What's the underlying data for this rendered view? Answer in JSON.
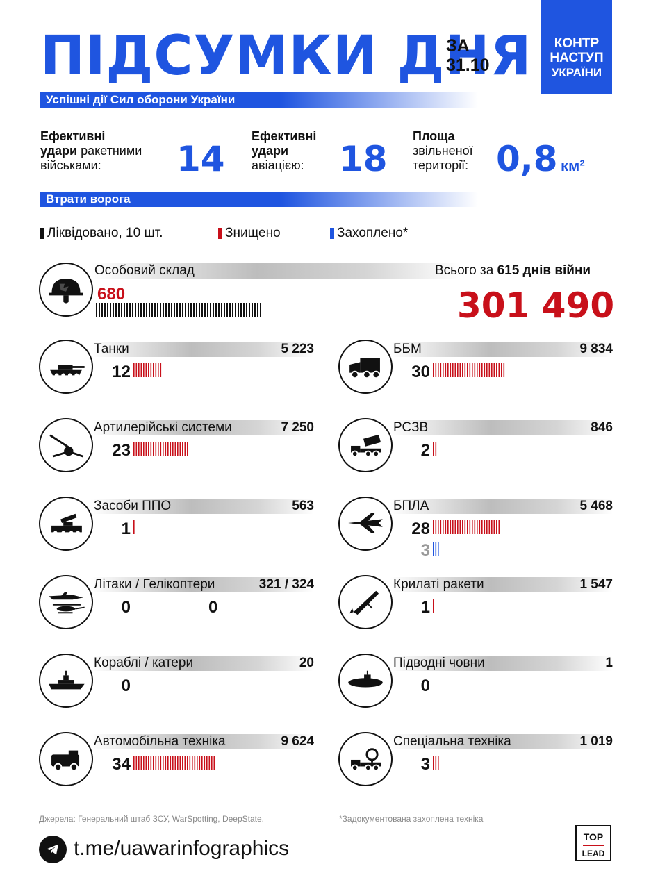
{
  "header": {
    "title": "ПІДСУМКИ ДНЯ",
    "date_prefix": "ЗА",
    "date": "31.10",
    "badge_line1": "КОНТР",
    "badge_line2": "НАСТУП",
    "badge_line3": "УКРАЇНИ"
  },
  "section1": {
    "label": "Успішні дії Сил оборони України"
  },
  "stats": [
    {
      "line1_bold": "Ефективні",
      "line2_bold": "удари",
      "line2_rest": " ракетними",
      "line3": "військами:",
      "value": "14"
    },
    {
      "line1_bold": "Ефективні",
      "line2_bold": "удари",
      "line2_rest": "",
      "line3": "авіацією:",
      "value": "18"
    },
    {
      "line1_bold": "Площа",
      "line2_bold": "",
      "line2_rest": "звільненої",
      "line3": "території:",
      "value": "0,8",
      "unit": "км²"
    }
  ],
  "section2": {
    "label": "Втрати ворога"
  },
  "legend": {
    "liquidated": "Ліквідовано, 10 шт.",
    "destroyed": "Знищено",
    "captured": "Захоплено*",
    "colors": {
      "liquidated": "#111111",
      "destroyed": "#c8101a",
      "captured": "#1f55e0"
    }
  },
  "personnel": {
    "label": "Особовий склад",
    "day": "680",
    "total_caption_pre": "Всього за ",
    "total_caption_bold": "615 днів війни",
    "total": "301 490"
  },
  "rows_left": [
    {
      "name": "Танки",
      "total": "5 223",
      "day": "12",
      "icon": "tank-icon"
    },
    {
      "name": "Артилерійські системи",
      "total": "7 250",
      "day": "23",
      "icon": "artillery-icon"
    },
    {
      "name": "Засоби ППО",
      "total": "563",
      "day": "1",
      "icon": "air-defense-icon"
    },
    {
      "name": "Літаки / Гелікоптери",
      "total": "321 / 324",
      "day": "0",
      "day2": "0",
      "icon": "aircraft-helicopter-icon"
    },
    {
      "name": "Кораблі / катери",
      "total": "20",
      "day": "0",
      "icon": "ship-icon"
    },
    {
      "name": "Автомобільна техніка",
      "total": "9 624",
      "day": "34",
      "icon": "truck-icon"
    }
  ],
  "rows_right": [
    {
      "name": "ББМ",
      "total": "9 834",
      "day": "30",
      "icon": "armored-vehicle-icon"
    },
    {
      "name": "РСЗВ",
      "total": "846",
      "day": "2",
      "icon": "mlrs-icon"
    },
    {
      "name": "БПЛА",
      "total": "5 468",
      "day": "28",
      "captured": "3",
      "icon": "drone-icon"
    },
    {
      "name": "Крилаті ракети",
      "total": "1 547",
      "day": "1",
      "icon": "cruise-missile-icon"
    },
    {
      "name": "Підводні човни",
      "total": "1",
      "day": "0",
      "icon": "submarine-icon"
    },
    {
      "name": "Спеціальна техніка",
      "total": "1 019",
      "day": "3",
      "icon": "special-vehicle-icon"
    }
  ],
  "footer": {
    "sources": "Джерела: Генеральний штаб ЗСУ, WarSpotting, DeepState.",
    "note": "*Задокументована захоплена техніка",
    "link": "t.me/uawarinfographics",
    "brand_top": "TOP",
    "brand_bottom": "LEAD"
  }
}
